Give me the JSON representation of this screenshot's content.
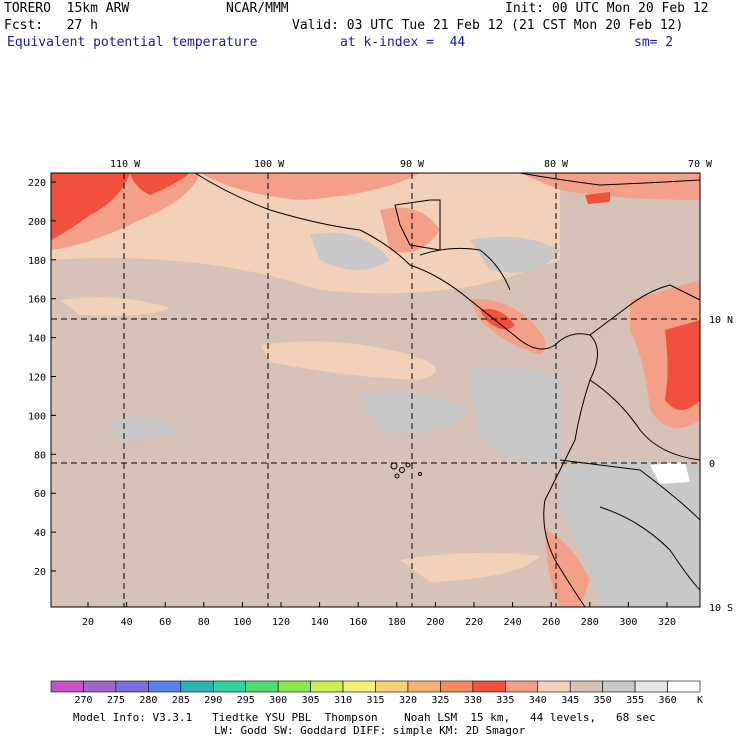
{
  "header": {
    "model": "TORERO  15km ARW",
    "source": "NCAR/MMM",
    "init": "Init: 00 UTC Mon 20 Feb 12",
    "fcst": "Fcst:   27 h",
    "valid": "Valid: 03 UTC Tue 21 Feb 12 (21 CST Mon 20 Feb 12)",
    "field": "Equivalent potential temperature",
    "level": "at k-index =  44",
    "smooth": "sm= 2"
  },
  "map": {
    "top_lon_labels": [
      "110 W",
      "100 W",
      "90 W",
      "80 W",
      "70 W"
    ],
    "right_lat_labels": [
      "10 N",
      "0",
      "10 S"
    ],
    "y_ticks": [
      "20",
      "40",
      "60",
      "80",
      "100",
      "120",
      "140",
      "160",
      "180",
      "200",
      "220"
    ],
    "x_ticks": [
      "20",
      "40",
      "60",
      "80",
      "100",
      "120",
      "140",
      "160",
      "180",
      "200",
      "220",
      "240",
      "260",
      "280",
      "300",
      "320"
    ]
  },
  "colorbar": {
    "unit": "K",
    "labels": [
      "270",
      "275",
      "280",
      "285",
      "290",
      "295",
      "300",
      "305",
      "310",
      "315",
      "320",
      "325",
      "330",
      "335",
      "340",
      "345",
      "350",
      "355",
      "360"
    ],
    "colors": [
      "#c850c8",
      "#a064c8",
      "#7a6ed8",
      "#5a82e6",
      "#2ab4b4",
      "#30d2a0",
      "#50dc6e",
      "#8ce650",
      "#c8f050",
      "#f5f07a",
      "#f6d278",
      "#f8b070",
      "#f58a5c",
      "#f0503c",
      "#f4a088",
      "#f3d0b8",
      "#d6c2b6",
      "#c8c8c8",
      "#e6e6e6",
      "#ffffff"
    ]
  },
  "footer": {
    "line1": "Model Info: V3.3.1   Tiedtke YSU PBL  Thompson    Noah LSM  15 km,   44 levels,   68 sec",
    "line2": "LW: Godd SW: Goddard DIFF: simple KM: 2D Smagor"
  }
}
